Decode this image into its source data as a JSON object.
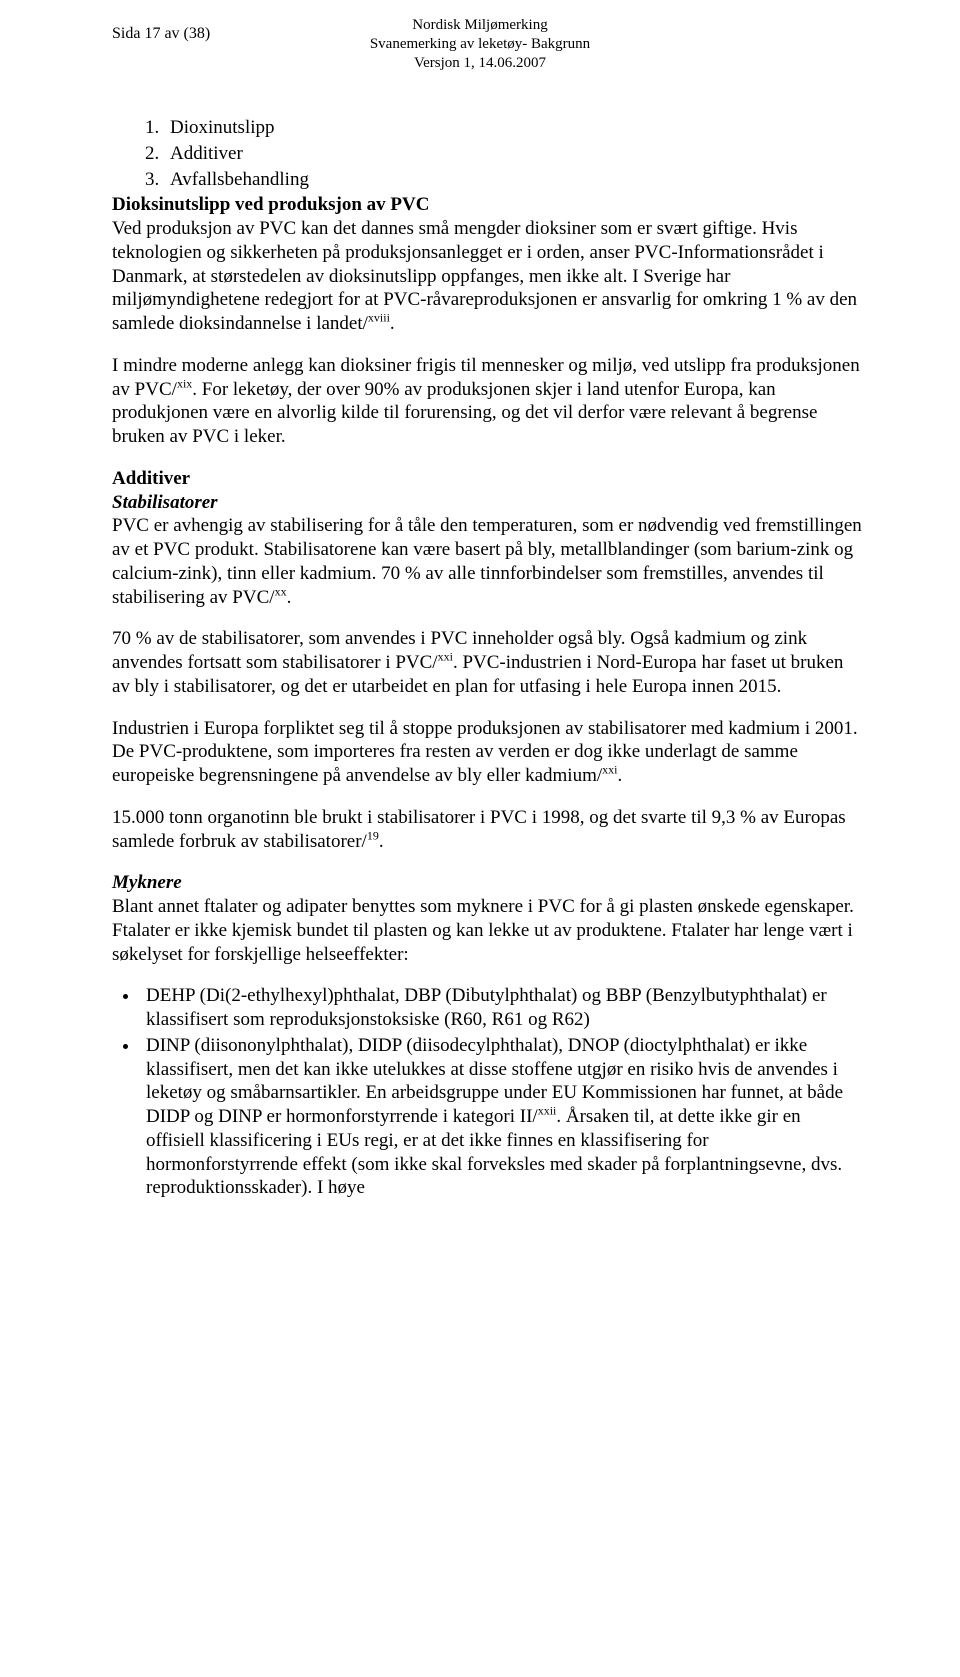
{
  "header": {
    "page_label": "Sida 17 av (38)",
    "center_line1": "Nordisk Miljømerking",
    "center_line2": "Svanemerking av leketøy- Bakgrunn",
    "center_line3": "Versjon 1, 14.06.2007"
  },
  "list": {
    "item1": "Dioxinutslipp",
    "item2": "Additiver",
    "item3": "Avfallsbehandling"
  },
  "p_intro_bold": "Dioksinutslipp ved produksjon av PVC",
  "p_intro_rest_1": "Ved produksjon av PVC kan det dannes små mengder dioksiner som er svært giftige. Hvis teknologien og sikkerheten på produksjonsanlegget er i orden, anser PVC-Informationsrådet i Danmark, at størstedelen av dioksinutslipp oppfanges, men ikke alt. I Sverige har miljømyndighetene redegjort for at PVC-råvareproduksjonen er ansvarlig for omkring 1 % av den samlede dioksindannelse i landet/",
  "p_intro_sup1": "xviii",
  "p_intro_rest_2": ".",
  "p2_a": "I mindre moderne anlegg kan dioksiner frigis til mennesker og miljø, ved utslipp fra produksjonen av PVC/",
  "p2_sup": "xix",
  "p2_b": ". For leketøy, der over 90% av produksjonen skjer i land utenfor Europa, kan produkjonen være en alvorlig kilde til forurensing, og det vil derfor være relevant å begrense bruken av PVC i leker.",
  "section_additiver": "Additiver",
  "sub_stabil": "Stabilisatorer",
  "p3_a": "PVC er avhengig av stabilisering for å tåle den temperaturen, som er nødvendig ved fremstillingen av et PVC produkt. Stabilisatorene kan være basert på bly, metallblandinger (som barium-zink og calcium-zink), tinn eller kadmium. 70 % av alle tinnforbindelser som fremstilles, anvendes til stabilisering av PVC/",
  "p3_sup": "xx",
  "p3_b": ".",
  "p4_a": "70 % av de stabilisatorer, som anvendes i PVC inneholder også bly. Også kadmium og zink anvendes fortsatt som stabilisatorer i PVC/",
  "p4_sup": "xxi",
  "p4_b": ". PVC-industrien i Nord-Europa har faset ut bruken av bly i stabilisatorer, og det er utarbeidet en plan for utfasing i hele Europa innen 2015.",
  "p5_a": "Industrien i Europa forpliktet seg til å stoppe produksjonen av stabilisatorer med kadmium i 2001. De PVC-produktene, som importeres fra resten av verden er dog ikke underlagt de samme europeiske begrensningene på anvendelse av bly eller kadmium/",
  "p5_sup": "xxi",
  "p5_b": ".",
  "p6_a": " 15.000 tonn organotinn ble brukt i stabilisatorer i PVC i 1998, og det svarte til 9,3 % av Europas samlede forbruk av stabilisatorer/",
  "p6_sup": "19",
  "p6_b": ".",
  "sub_myk": "Myknere",
  "p7": "Blant annet ftalater og adipater benyttes som myknere i PVC for å gi plasten ønskede egenskaper. Ftalater er ikke kjemisk bundet til plasten og kan lekke ut av produktene. Ftalater har lenge vært i søkelyset for forskjellige helseeffekter:",
  "bullet1": "DEHP (Di(2-ethylhexyl)phthalat, DBP (Dibutylphthalat) og BBP (Benzylbutyphthalat) er klassifisert som reproduksjonstoksiske (R60, R61 og R62)",
  "bullet2_a": "DINP (diisononylphthalat), DIDP (diisodecylphthalat), DNOP (dioctylphthalat) er ikke klassifisert, men det kan ikke utelukkes at disse stoffene utgjør en risiko hvis de anvendes i leketøy og småbarnsartikler. En arbeidsgruppe under EU Kommissionen har funnet, at både DIDP og DINP er hormonforstyrrende i kategori II/",
  "bullet2_sup": "xxii",
  "bullet2_b": ". Årsaken til, at dette ikke gir en offisiell klassificering i EUs regi, er at det ikke finnes en klassifisering for hormonforstyrrende effekt (som ikke skal forveksles med skader på forplantningsevne, dvs. reproduktionsskader). I høye"
}
